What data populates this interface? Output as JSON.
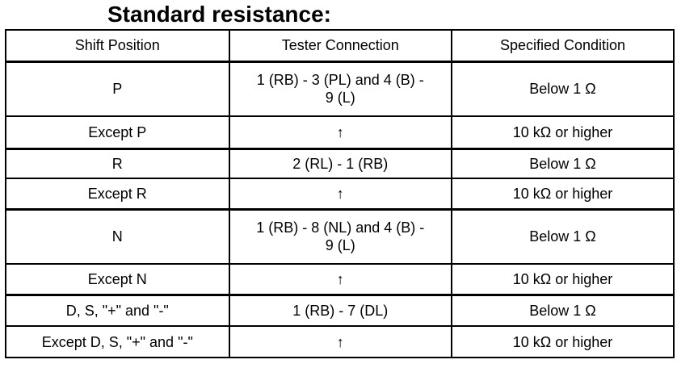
{
  "title": "Standard resistance:",
  "headers": [
    "Shift Position",
    "Tester Connection",
    "Specified Condition"
  ],
  "rows": [
    {
      "shift": "P",
      "connection": "1 (RB) - 3 (PL) and 4 (B) - 9 (L)",
      "condition": "Below 1 Ω"
    },
    {
      "shift": "Except P",
      "connection": "↑",
      "condition": "10 kΩ or higher"
    },
    {
      "shift": "R",
      "connection": "2 (RL) - 1 (RB)",
      "condition": "Below 1 Ω"
    },
    {
      "shift": "Except R",
      "connection": "↑",
      "condition": "10 kΩ or higher"
    },
    {
      "shift": "N",
      "connection": "1 (RB) - 8 (NL) and 4 (B) - 9 (L)",
      "condition": "Below 1 Ω"
    },
    {
      "shift": "Except N",
      "connection": "↑",
      "condition": "10 kΩ or higher"
    },
    {
      "shift": "D, S, \"+\" and \"-\"",
      "connection": "1 (RB) - 7 (DL)",
      "condition": "Below 1 Ω"
    },
    {
      "shift": "Except D, S, \"+\" and \"-\"",
      "connection": "↑",
      "condition": "10 kΩ or higher"
    }
  ]
}
